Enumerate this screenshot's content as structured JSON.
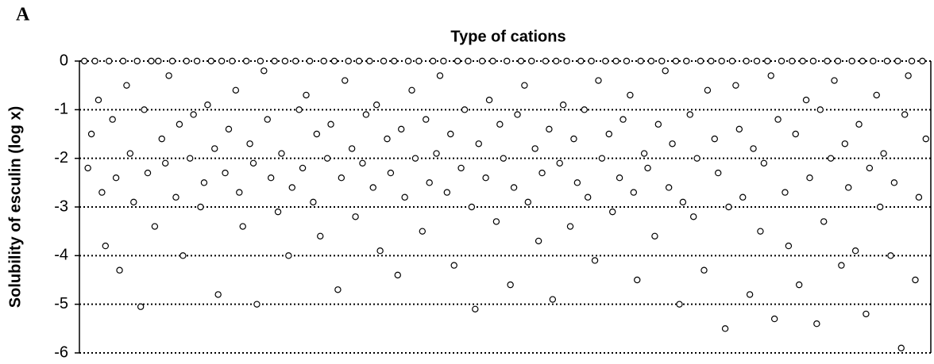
{
  "panel_label": "A",
  "chart_data": {
    "type": "scatter",
    "title": "Type of cations",
    "y_label": "Solubility of esculin (log x)",
    "ylim": [
      -6,
      0
    ],
    "yticks": [
      0,
      -1,
      -2,
      -3,
      -4,
      -5,
      -6
    ],
    "grid": true,
    "marker_fill": "#ffffff",
    "marker_stroke": "#000000",
    "values": [
      0,
      -2.2,
      -1.5,
      0,
      -0.8,
      -2.7,
      -3.8,
      0,
      -1.2,
      -2.4,
      -4.3,
      0,
      -0.5,
      -1.9,
      -2.9,
      0,
      -5.05,
      -1.0,
      -2.3,
      0,
      -3.4,
      0,
      -1.6,
      -2.1,
      -0.3,
      0,
      -2.8,
      -1.3,
      -4.0,
      0,
      -2.0,
      -1.1,
      0,
      -3.0,
      -2.5,
      -0.9,
      0,
      -1.8,
      -4.8,
      0,
      -2.3,
      -1.4,
      0,
      -0.6,
      -2.7,
      -3.4,
      0,
      -1.7,
      -2.1,
      -5.0,
      0,
      -0.2,
      -1.2,
      -2.4,
      0,
      -3.1,
      -1.9,
      0,
      -4.0,
      -2.6,
      0,
      -1.0,
      -2.2,
      -0.7,
      0,
      -2.9,
      -1.5,
      -3.6,
      0,
      -2.0,
      -1.3,
      0,
      -4.7,
      -2.4,
      -0.4,
      0,
      -1.8,
      -3.2,
      0,
      -2.1,
      -1.1,
      0,
      -2.6,
      -0.9,
      -3.9,
      0,
      -1.6,
      -2.3,
      0,
      -4.4,
      -1.4,
      -2.8,
      0,
      -0.6,
      -2.0,
      0,
      -3.5,
      -1.2,
      -2.5,
      0,
      -1.9,
      -0.3,
      0,
      -2.7,
      -1.5,
      -4.2,
      0,
      -2.2,
      -1.0,
      0,
      -3.0,
      -5.1,
      -1.7,
      0,
      -2.4,
      -0.8,
      0,
      -3.3,
      -1.3,
      -2.0,
      0,
      -4.6,
      -2.6,
      -1.1,
      0,
      -0.5,
      -2.9,
      0,
      -1.8,
      -3.7,
      -2.3,
      0,
      -1.4,
      -4.9,
      0,
      -2.1,
      -0.9,
      0,
      -3.4,
      -1.6,
      -2.5,
      0,
      -1.0,
      -2.8,
      0,
      -4.1,
      -0.4,
      -2.0,
      0,
      -1.5,
      -3.1,
      0,
      -2.4,
      -1.2,
      0,
      -0.7,
      -2.7,
      -4.5,
      0,
      -1.9,
      -2.2,
      0,
      -3.6,
      -1.3,
      0,
      -0.2,
      -2.6,
      -1.7,
      0,
      -5.0,
      -2.9,
      0,
      -1.1,
      -3.2,
      -2.0,
      0,
      -4.3,
      -0.6,
      0,
      -1.6,
      -2.3,
      0,
      -5.5,
      -3.0,
      0,
      -0.5,
      -1.4,
      -2.8,
      0,
      -4.8,
      -1.8,
      0,
      -3.5,
      -2.1,
      0,
      -0.3,
      -5.3,
      -1.2,
      0,
      -2.7,
      -3.8,
      0,
      -1.5,
      -4.6,
      0,
      -0.8,
      -2.4,
      0,
      -5.4,
      -1.0,
      -3.3,
      0,
      -2.0,
      -0.4,
      0,
      -4.2,
      -1.7,
      -2.6,
      0,
      -3.9,
      -1.3,
      0,
      -5.2,
      -2.2,
      0,
      -0.7,
      -3.0,
      -1.9,
      0,
      -4.0,
      -2.5,
      0,
      -5.9,
      -1.1,
      -0.3,
      0,
      -4.5,
      -2.8,
      0,
      -1.6
    ]
  }
}
